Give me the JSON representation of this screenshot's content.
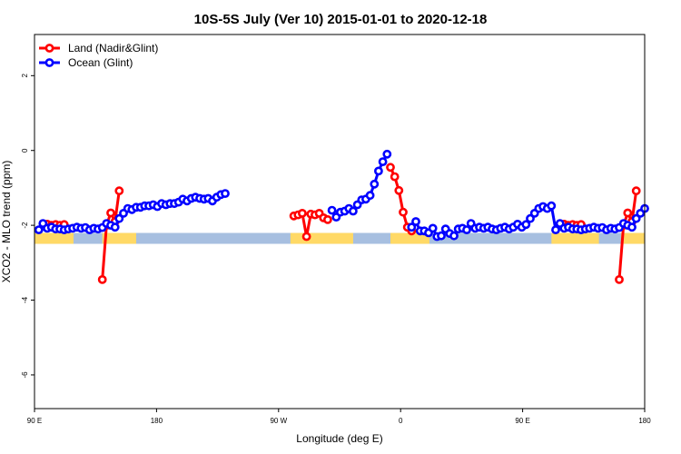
{
  "chart_data": {
    "type": "line",
    "title": "10S-5S July (Ver 10)   2015-01-01 to 2020-12-18",
    "xlabel": "Longitude (deg E)",
    "ylabel": "XCO2 - MLO trend (ppm)",
    "xlim": [
      90,
      450
    ],
    "ylim": [
      -6.9,
      3.1
    ],
    "x_ticks": [
      90,
      162,
      234,
      306,
      378,
      450
    ],
    "x_tick_labels": [
      "90 E",
      "180",
      "90 W",
      "0",
      "90 E",
      "180"
    ],
    "y_ticks": [
      -6,
      -4,
      -2,
      0,
      2
    ],
    "y_tick_labels": [
      "-6",
      "-4",
      "-2",
      "0",
      "2"
    ],
    "legend": {
      "position": "top-left",
      "entries": [
        "Land (Nadir&Glint)",
        "Ocean (Glint)"
      ]
    },
    "colors": {
      "land": "#ff0000",
      "ocean": "#0000ff",
      "land_strip": "#ffd966",
      "ocean_strip": "#a7bfe0",
      "outline": "#e8b458"
    },
    "land_strip_y": -2.35,
    "land_strip_segments": [
      [
        90,
        113
      ],
      [
        130,
        150
      ],
      [
        241,
        278
      ],
      [
        300,
        323
      ],
      [
        395,
        423
      ],
      [
        436,
        450
      ]
    ],
    "series": [
      {
        "name": "Land (Nadir&Glint)",
        "color": "#ff0000",
        "segments": [
          [
            [
              97.5,
              -1.97
            ],
            [
              100,
              -2.0
            ],
            [
              102.5,
              -1.98
            ],
            [
              105,
              -2.0
            ],
            [
              107.5,
              -1.98
            ]
          ],
          [
            [
              130,
              -3.45
            ],
            [
              132.5,
              -2.0
            ],
            [
              135,
              -1.67
            ],
            [
              137.5,
              -1.9
            ],
            [
              140,
              -1.08
            ]
          ],
          [
            [
              243,
              -1.75
            ],
            [
              245.5,
              -1.72
            ],
            [
              248,
              -1.68
            ],
            [
              250.5,
              -2.3
            ],
            [
              253,
              -1.7
            ],
            [
              255.5,
              -1.72
            ],
            [
              258,
              -1.68
            ],
            [
              260.5,
              -1.8
            ],
            [
              263,
              -1.85
            ]
          ],
          [
            [
              300,
              -0.45
            ],
            [
              302.5,
              -0.7
            ],
            [
              305,
              -1.07
            ],
            [
              307.5,
              -1.65
            ],
            [
              310,
              -2.05
            ],
            [
              312.5,
              -2.15
            ]
          ],
          [
            [
              402.5,
              -1.97
            ],
            [
              405,
              -2.0
            ],
            [
              407.5,
              -1.98
            ],
            [
              410,
              -2.0
            ],
            [
              412.5,
              -1.98
            ]
          ],
          [
            [
              435,
              -3.45
            ],
            [
              437.5,
              -2.0
            ],
            [
              440,
              -1.67
            ],
            [
              442.5,
              -1.9
            ],
            [
              445,
              -1.08
            ]
          ]
        ]
      },
      {
        "name": "Ocean (Glint)",
        "color": "#0000ff",
        "segments": [
          [
            [
              92.5,
              -2.12
            ],
            [
              95,
              -1.95
            ],
            [
              97.5,
              -2.08
            ],
            [
              100,
              -2.05
            ],
            [
              102.5,
              -2.1
            ],
            [
              105,
              -2.1
            ],
            [
              107.5,
              -2.12
            ],
            [
              110,
              -2.1
            ],
            [
              112.5,
              -2.08
            ],
            [
              115,
              -2.05
            ],
            [
              117.5,
              -2.08
            ],
            [
              120,
              -2.06
            ],
            [
              122.5,
              -2.12
            ],
            [
              125,
              -2.08
            ],
            [
              127.5,
              -2.1
            ],
            [
              130,
              -2.06
            ],
            [
              132.5,
              -1.95
            ],
            [
              135,
              -2.0
            ],
            [
              137.5,
              -2.05
            ],
            [
              140,
              -1.82
            ],
            [
              142.5,
              -1.68
            ],
            [
              145,
              -1.55
            ],
            [
              147.5,
              -1.58
            ],
            [
              150,
              -1.52
            ],
            [
              152.5,
              -1.52
            ],
            [
              155,
              -1.48
            ],
            [
              157.5,
              -1.48
            ],
            [
              160,
              -1.45
            ],
            [
              162.5,
              -1.5
            ],
            [
              165,
              -1.42
            ],
            [
              167.5,
              -1.45
            ],
            [
              170,
              -1.42
            ],
            [
              172.5,
              -1.42
            ],
            [
              175,
              -1.38
            ],
            [
              177.5,
              -1.3
            ],
            [
              180,
              -1.35
            ],
            [
              182.5,
              -1.28
            ],
            [
              185,
              -1.25
            ],
            [
              187.5,
              -1.28
            ],
            [
              190,
              -1.3
            ],
            [
              192.5,
              -1.28
            ],
            [
              195,
              -1.35
            ],
            [
              197.5,
              -1.25
            ],
            [
              200,
              -1.18
            ],
            [
              202.5,
              -1.15
            ]
          ],
          [
            [
              265.5,
              -1.6
            ],
            [
              268,
              -1.78
            ],
            [
              270.5,
              -1.65
            ],
            [
              273,
              -1.62
            ],
            [
              275.5,
              -1.55
            ],
            [
              278,
              -1.62
            ],
            [
              280.5,
              -1.45
            ],
            [
              283,
              -1.32
            ],
            [
              285.5,
              -1.3
            ],
            [
              288,
              -1.2
            ],
            [
              290.5,
              -0.9
            ],
            [
              293,
              -0.55
            ],
            [
              295.5,
              -0.3
            ],
            [
              298,
              -0.1
            ]
          ],
          [
            [
              312.5,
              -2.05
            ],
            [
              315,
              -1.9
            ],
            [
              317.5,
              -2.15
            ],
            [
              320,
              -2.15
            ],
            [
              322.5,
              -2.2
            ],
            [
              325,
              -2.08
            ],
            [
              327.5,
              -2.3
            ],
            [
              330,
              -2.28
            ],
            [
              332.5,
              -2.1
            ],
            [
              335,
              -2.22
            ],
            [
              337.5,
              -2.28
            ],
            [
              340,
              -2.1
            ],
            [
              342.5,
              -2.08
            ],
            [
              345,
              -2.12
            ],
            [
              347.5,
              -1.95
            ],
            [
              350,
              -2.08
            ],
            [
              352.5,
              -2.05
            ],
            [
              355,
              -2.08
            ],
            [
              357.5,
              -2.05
            ],
            [
              360,
              -2.1
            ],
            [
              362.5,
              -2.12
            ],
            [
              365,
              -2.08
            ],
            [
              367.5,
              -2.05
            ],
            [
              370,
              -2.1
            ],
            [
              372.5,
              -2.05
            ],
            [
              375,
              -1.97
            ],
            [
              377.5,
              -2.05
            ],
            [
              380,
              -1.98
            ],
            [
              382.5,
              -1.82
            ],
            [
              385,
              -1.68
            ],
            [
              387.5,
              -1.55
            ],
            [
              390,
              -1.5
            ],
            [
              392.5,
              -1.55
            ],
            [
              395,
              -1.48
            ],
            [
              397.5,
              -2.12
            ],
            [
              400,
              -1.95
            ],
            [
              402.5,
              -2.08
            ],
            [
              405,
              -2.05
            ],
            [
              407.5,
              -2.1
            ],
            [
              410,
              -2.1
            ],
            [
              412.5,
              -2.12
            ],
            [
              415,
              -2.1
            ],
            [
              417.5,
              -2.08
            ],
            [
              420,
              -2.05
            ],
            [
              422.5,
              -2.08
            ],
            [
              425,
              -2.06
            ],
            [
              427.5,
              -2.12
            ],
            [
              430,
              -2.08
            ],
            [
              432.5,
              -2.1
            ],
            [
              435,
              -2.06
            ],
            [
              437.5,
              -1.95
            ],
            [
              440,
              -2.0
            ],
            [
              442.5,
              -2.05
            ],
            [
              445,
              -1.82
            ],
            [
              447.5,
              -1.68
            ],
            [
              450,
              -1.55
            ]
          ]
        ]
      }
    ]
  }
}
